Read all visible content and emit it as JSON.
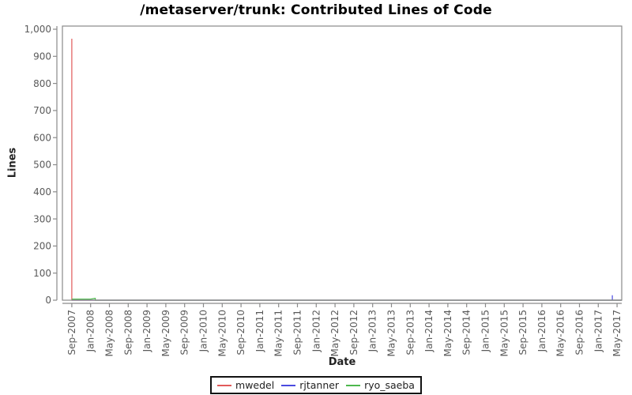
{
  "chart_data": {
    "type": "line",
    "title": "/metaserver/trunk: Contributed Lines of Code",
    "xlabel": "Date",
    "ylabel": "Lines",
    "ylim": [
      0,
      1000
    ],
    "xlim": [
      "2007-07",
      "2017-06"
    ],
    "grid": false,
    "legend_position": "bottom",
    "y_ticks": [
      {
        "value": 0,
        "label": "0"
      },
      {
        "value": 100,
        "label": "100"
      },
      {
        "value": 200,
        "label": "200"
      },
      {
        "value": 300,
        "label": "300"
      },
      {
        "value": 400,
        "label": "400"
      },
      {
        "value": 500,
        "label": "500"
      },
      {
        "value": 600,
        "label": "600"
      },
      {
        "value": 700,
        "label": "700"
      },
      {
        "value": 800,
        "label": "800"
      },
      {
        "value": 900,
        "label": "900"
      },
      {
        "value": 1000,
        "label": "1,000"
      }
    ],
    "x_ticks": [
      "Sep-2007",
      "Jan-2008",
      "May-2008",
      "Sep-2008",
      "Jan-2009",
      "May-2009",
      "Sep-2009",
      "Jan-2010",
      "May-2010",
      "Sep-2010",
      "Jan-2011",
      "May-2011",
      "Sep-2011",
      "Jan-2012",
      "May-2012",
      "Sep-2012",
      "Jan-2013",
      "May-2013",
      "Sep-2013",
      "Jan-2014",
      "May-2014",
      "Sep-2014",
      "Jan-2015",
      "May-2015",
      "Sep-2015",
      "Jan-2016",
      "May-2016",
      "Sep-2016",
      "Jan-2017",
      "May-2017"
    ],
    "series": [
      {
        "name": "mwedel",
        "color": "#e25a5a",
        "points": [
          [
            "2007-09",
            0
          ],
          [
            "2007-09",
            965
          ],
          [
            "2007-09",
            0
          ],
          [
            "2017-06",
            0
          ]
        ]
      },
      {
        "name": "rjtanner",
        "color": "#4a4ae0",
        "points": [
          [
            "2007-09",
            0
          ],
          [
            "2017-04",
            0
          ],
          [
            "2017-04",
            18
          ],
          [
            "2017-04",
            0
          ],
          [
            "2017-06",
            0
          ]
        ]
      },
      {
        "name": "ryo_saeba",
        "color": "#4db84d",
        "points": [
          [
            "2007-09",
            4
          ],
          [
            "2008-01",
            4
          ],
          [
            "2008-02",
            7
          ],
          [
            "2008-02",
            0
          ],
          [
            "2017-06",
            0
          ]
        ]
      }
    ],
    "axis_color": "#8a8a8a",
    "tick_label_color": "#5a5a5a"
  }
}
